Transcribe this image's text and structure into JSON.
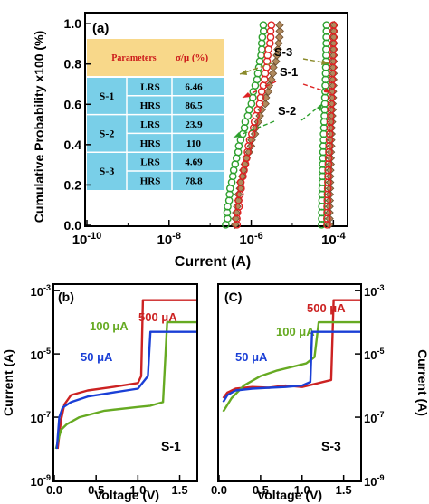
{
  "chart_data": [
    {
      "panel": "(a)",
      "type": "scatter",
      "xlabel": "Current (A)",
      "ylabel": "Cumulative Probability x100 (%)",
      "xscale": "log",
      "xlim": [
        1e-10,
        0.0002
      ],
      "ylim": [
        0,
        1.05
      ],
      "xticks": [
        "10-10",
        "10-8",
        "10-6",
        "10-4"
      ],
      "yticks": [
        "0.0",
        "0.2",
        "0.4",
        "0.6",
        "0.8",
        "1.0"
      ],
      "series": [
        {
          "name": "S-1",
          "color": "#dd2222",
          "marker": "circle",
          "lrs": {
            "min": 4.5e-07,
            "max": 3e-06
          },
          "hrs": {
            "min": 7e-05,
            "max": 0.0001
          }
        },
        {
          "name": "S-2",
          "color": "#2ea02e",
          "marker": "circle",
          "lrs": {
            "min": 2.5e-07,
            "max": 2e-06
          },
          "hrs": {
            "min": 5.2e-05,
            "max": 6.8e-05
          }
        },
        {
          "name": "S-3",
          "color": "#a0744a",
          "marker": "diamond",
          "lrs": {
            "min": 4e-07,
            "max": 5e-06
          },
          "hrs": {
            "min": 8e-05,
            "max": 0.000105
          }
        }
      ],
      "table": {
        "headers": [
          "Parameters",
          "σ/μ (%)"
        ],
        "rows": [
          {
            "sample": "S-1",
            "state": "LRS",
            "value": "6.46"
          },
          {
            "sample": "",
            "state": "HRS",
            "value": "86.5"
          },
          {
            "sample": "S-2",
            "state": "LRS",
            "value": "23.9"
          },
          {
            "sample": "",
            "state": "HRS",
            "value": "110"
          },
          {
            "sample": "S-3",
            "state": "LRS",
            "value": "4.69"
          },
          {
            "sample": "",
            "state": "HRS",
            "value": "78.8"
          }
        ]
      },
      "annotations": [
        "S-3",
        "S-1",
        "S-2"
      ]
    },
    {
      "panel": "(b)",
      "type": "line",
      "corner_label": "S-1",
      "xlabel": "Voltage (V)",
      "ylabel": "Current (A)",
      "yscale": "log",
      "xlim": [
        0,
        1.7
      ],
      "ylim": [
        1e-09,
        0.0015
      ],
      "xticks": [
        "0.0",
        "0.5",
        "1.0",
        "1.5"
      ],
      "yticks": [
        "10-9",
        "10-7",
        "10-5",
        "10-3"
      ],
      "series": [
        {
          "name": "500 μA",
          "color": "#cc2222",
          "x": [
            0.04,
            0.08,
            0.12,
            0.2,
            0.4,
            0.7,
            1.0,
            1.04,
            1.06,
            1.7
          ],
          "y": [
            1e-08,
            8e-08,
            2.5e-07,
            5e-07,
            7e-07,
            9e-07,
            1.2e-06,
            2e-06,
            0.0005,
            0.0005
          ]
        },
        {
          "name": "100 μA",
          "color": "#66aa22",
          "x": [
            0.02,
            0.05,
            0.08,
            0.15,
            0.3,
            0.6,
            1.0,
            1.15,
            1.3,
            1.35,
            1.7
          ],
          "y": [
            1e-08,
            2e-08,
            4e-08,
            6e-08,
            1e-07,
            1.6e-07,
            2.1e-07,
            2.3e-07,
            3e-07,
            0.0001,
            0.0001
          ]
        },
        {
          "name": "50 μA",
          "color": "#1a3fd6",
          "x": [
            0.03,
            0.06,
            0.1,
            0.2,
            0.4,
            0.7,
            1.0,
            1.12,
            1.15,
            1.7
          ],
          "y": [
            1e-08,
            1e-07,
            2e-07,
            3e-07,
            4.5e-07,
            6e-07,
            8e-07,
            2e-06,
            5e-05,
            5e-05
          ]
        }
      ]
    },
    {
      "panel": "(C)",
      "type": "line",
      "corner_label": "S-3",
      "xlabel": "Voltage (V)",
      "ylabel": "Current (A)",
      "yscale": "log",
      "xlim": [
        0,
        1.7
      ],
      "ylim": [
        1e-09,
        0.0015
      ],
      "xticks": [
        "0.0",
        "0.5",
        "1.0",
        "1.5"
      ],
      "yticks": [
        "10-9",
        "10-7",
        "10-5",
        "10-3"
      ],
      "series": [
        {
          "name": "500 μA",
          "color": "#cc2222",
          "x": [
            0.05,
            0.1,
            0.2,
            0.4,
            0.6,
            0.8,
            1.0,
            1.2,
            1.35,
            1.38,
            1.7
          ],
          "y": [
            4e-07,
            6e-07,
            8e-07,
            9e-07,
            8.5e-07,
            1e-06,
            9e-07,
            1.2e-06,
            1.5e-06,
            0.0005,
            0.0005
          ]
        },
        {
          "name": "100 μA",
          "color": "#66aa22",
          "x": [
            0.05,
            0.15,
            0.3,
            0.5,
            0.7,
            0.9,
            1.05,
            1.15,
            1.2,
            1.7
          ],
          "y": [
            1.5e-07,
            4e-07,
            1e-06,
            2e-06,
            3e-06,
            4e-06,
            5e-06,
            8e-06,
            0.0001,
            0.0001
          ]
        },
        {
          "name": "50 μA",
          "color": "#1a3fd6",
          "x": [
            0.05,
            0.1,
            0.2,
            0.4,
            0.6,
            0.8,
            1.0,
            1.1,
            1.12,
            1.7
          ],
          "y": [
            3e-07,
            5e-07,
            7e-07,
            8e-07,
            8.5e-07,
            9e-07,
            1e-06,
            1.3e-06,
            5e-05,
            5e-05
          ]
        }
      ]
    }
  ]
}
